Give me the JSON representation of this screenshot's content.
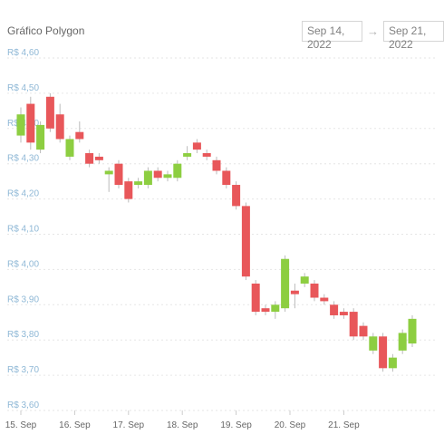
{
  "header": {
    "title": "Gráfico Polygon",
    "date_from": "Sep 14, 2022",
    "date_to": "Sep 21, 2022",
    "arrow": "→"
  },
  "colors": {
    "up": "#8dce41",
    "down": "#e8575a",
    "grid": "#e6e6e6",
    "wick": "#bbbbbb"
  },
  "chart_data": {
    "type": "candlestick",
    "title": "Gráfico Polygon",
    "y_tick_labels": [
      "R$ 3,60",
      "R$ 3,70",
      "R$ 3,80",
      "R$ 3,90",
      "R$ 4,00",
      "R$ 4,10",
      "R$ 4,20",
      "R$ 4,30",
      "R$ 4,40",
      "R$ 4,50",
      "R$ 4,60"
    ],
    "y_ticks": [
      3.6,
      3.7,
      3.8,
      3.9,
      4.0,
      4.1,
      4.2,
      4.3,
      4.4,
      4.5,
      4.6
    ],
    "ylim": [
      3.6,
      4.6
    ],
    "x_tick_labels": [
      "15. Sep",
      "16. Sep",
      "17. Sep",
      "18. Sep",
      "19. Sep",
      "20. Sep",
      "21. Sep"
    ],
    "x_ticks": [
      0,
      5.5,
      11,
      16.5,
      22,
      27.5,
      33
    ],
    "grid": "horizontal dashed",
    "candles": [
      {
        "t": 0,
        "open": 4.38,
        "close": 4.44,
        "high": 4.46,
        "low": 4.36
      },
      {
        "t": 1,
        "open": 4.47,
        "close": 4.36,
        "high": 4.49,
        "low": 4.34
      },
      {
        "t": 2,
        "open": 4.34,
        "close": 4.41,
        "high": 4.42,
        "low": 4.33
      },
      {
        "t": 3,
        "open": 4.49,
        "close": 4.4,
        "high": 4.5,
        "low": 4.39
      },
      {
        "t": 4,
        "open": 4.44,
        "close": 4.37,
        "high": 4.47,
        "low": 4.36
      },
      {
        "t": 5,
        "open": 4.32,
        "close": 4.37,
        "high": 4.38,
        "low": 4.31
      },
      {
        "t": 6,
        "open": 4.39,
        "close": 4.37,
        "high": 4.42,
        "low": 4.36
      },
      {
        "t": 7,
        "open": 4.33,
        "close": 4.3,
        "high": 4.34,
        "low": 4.29
      },
      {
        "t": 8,
        "open": 4.32,
        "close": 4.31,
        "high": 4.33,
        "low": 4.3
      },
      {
        "t": 9,
        "open": 4.27,
        "close": 4.28,
        "high": 4.29,
        "low": 4.22
      },
      {
        "t": 10,
        "open": 4.3,
        "close": 4.24,
        "high": 4.31,
        "low": 4.23
      },
      {
        "t": 11,
        "open": 4.25,
        "close": 4.2,
        "high": 4.26,
        "low": 4.19
      },
      {
        "t": 12,
        "open": 4.24,
        "close": 4.25,
        "high": 4.26,
        "low": 4.23
      },
      {
        "t": 13,
        "open": 4.24,
        "close": 4.28,
        "high": 4.29,
        "low": 4.23
      },
      {
        "t": 14,
        "open": 4.28,
        "close": 4.26,
        "high": 4.29,
        "low": 4.25
      },
      {
        "t": 15,
        "open": 4.26,
        "close": 4.27,
        "high": 4.28,
        "low": 4.25
      },
      {
        "t": 16,
        "open": 4.26,
        "close": 4.3,
        "high": 4.31,
        "low": 4.25
      },
      {
        "t": 17,
        "open": 4.32,
        "close": 4.33,
        "high": 4.35,
        "low": 4.31
      },
      {
        "t": 18,
        "open": 4.36,
        "close": 4.34,
        "high": 4.37,
        "low": 4.33
      },
      {
        "t": 19,
        "open": 4.33,
        "close": 4.32,
        "high": 4.34,
        "low": 4.31
      },
      {
        "t": 20,
        "open": 4.31,
        "close": 4.28,
        "high": 4.32,
        "low": 4.27
      },
      {
        "t": 21,
        "open": 4.28,
        "close": 4.24,
        "high": 4.29,
        "low": 4.23
      },
      {
        "t": 22,
        "open": 4.24,
        "close": 4.18,
        "high": 4.25,
        "low": 4.17
      },
      {
        "t": 23,
        "open": 4.18,
        "close": 3.98,
        "high": 4.19,
        "low": 3.97
      },
      {
        "t": 24,
        "open": 3.96,
        "close": 3.88,
        "high": 3.97,
        "low": 3.87
      },
      {
        "t": 25,
        "open": 3.89,
        "close": 3.88,
        "high": 3.9,
        "low": 3.87
      },
      {
        "t": 26,
        "open": 3.88,
        "close": 3.9,
        "high": 3.91,
        "low": 3.86
      },
      {
        "t": 27,
        "open": 3.89,
        "close": 4.03,
        "high": 4.04,
        "low": 3.88
      },
      {
        "t": 28,
        "open": 3.94,
        "close": 3.93,
        "high": 3.96,
        "low": 3.89
      },
      {
        "t": 29,
        "open": 3.96,
        "close": 3.98,
        "high": 3.99,
        "low": 3.95
      },
      {
        "t": 30,
        "open": 3.96,
        "close": 3.92,
        "high": 3.97,
        "low": 3.91
      },
      {
        "t": 31,
        "open": 3.92,
        "close": 3.91,
        "high": 3.93,
        "low": 3.9
      },
      {
        "t": 32,
        "open": 3.9,
        "close": 3.87,
        "high": 3.91,
        "low": 3.86
      },
      {
        "t": 33,
        "open": 3.88,
        "close": 3.87,
        "high": 3.89,
        "low": 3.86
      },
      {
        "t": 34,
        "open": 3.88,
        "close": 3.81,
        "high": 3.89,
        "low": 3.8
      },
      {
        "t": 35,
        "open": 3.84,
        "close": 3.81,
        "high": 3.85,
        "low": 3.8
      },
      {
        "t": 36,
        "open": 3.77,
        "close": 3.81,
        "high": 3.82,
        "low": 3.76
      },
      {
        "t": 37,
        "open": 3.81,
        "close": 3.72,
        "high": 3.82,
        "low": 3.71
      },
      {
        "t": 38,
        "open": 3.72,
        "close": 3.75,
        "high": 3.76,
        "low": 3.71
      },
      {
        "t": 39,
        "open": 3.77,
        "close": 3.82,
        "high": 3.83,
        "low": 3.76
      },
      {
        "t": 40,
        "open": 3.79,
        "close": 3.86,
        "high": 3.87,
        "low": 3.78
      }
    ]
  }
}
